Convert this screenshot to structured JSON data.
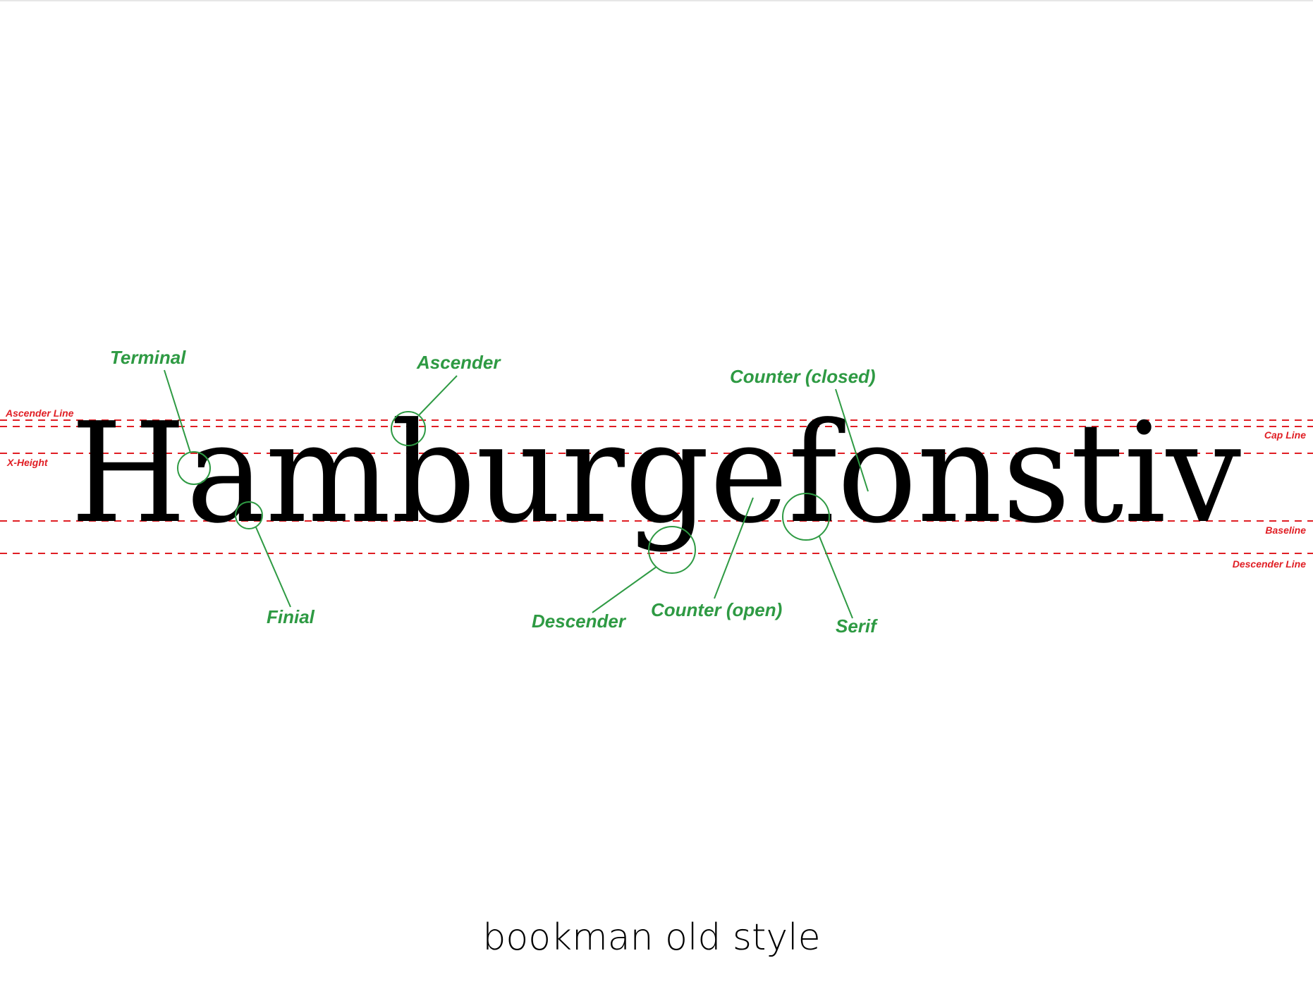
{
  "specimen": {
    "word": "Hamburgefonstiv",
    "font_caption": "bookman old style"
  },
  "guides": {
    "ascender_line": "Ascender Line",
    "cap_line": "Cap Line",
    "x_height": "X-Height",
    "baseline": "Baseline",
    "descender_line": "Descender Line"
  },
  "callouts": {
    "terminal": "Terminal",
    "ascender": "Ascender",
    "counter_closed": "Counter (closed)",
    "finial": "Finial",
    "descender": "Descender",
    "counter_open": "Counter (open)",
    "serif": "Serif"
  },
  "colors": {
    "guide": "#e01e24",
    "callout": "#2e9a43",
    "text": "#000000"
  }
}
